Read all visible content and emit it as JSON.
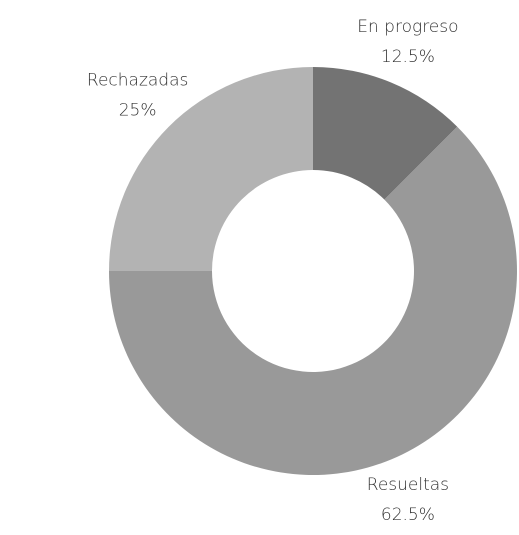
{
  "chart_data": {
    "type": "doughnut",
    "categories": [
      "En progreso",
      "Resueltas",
      "Rechazadas"
    ],
    "values": [
      12.5,
      62.5,
      25
    ],
    "value_labels": [
      "12.5%",
      "62.5%",
      "25%"
    ],
    "colors": [
      "#737373",
      "#999999",
      "#b3b3b3"
    ]
  }
}
